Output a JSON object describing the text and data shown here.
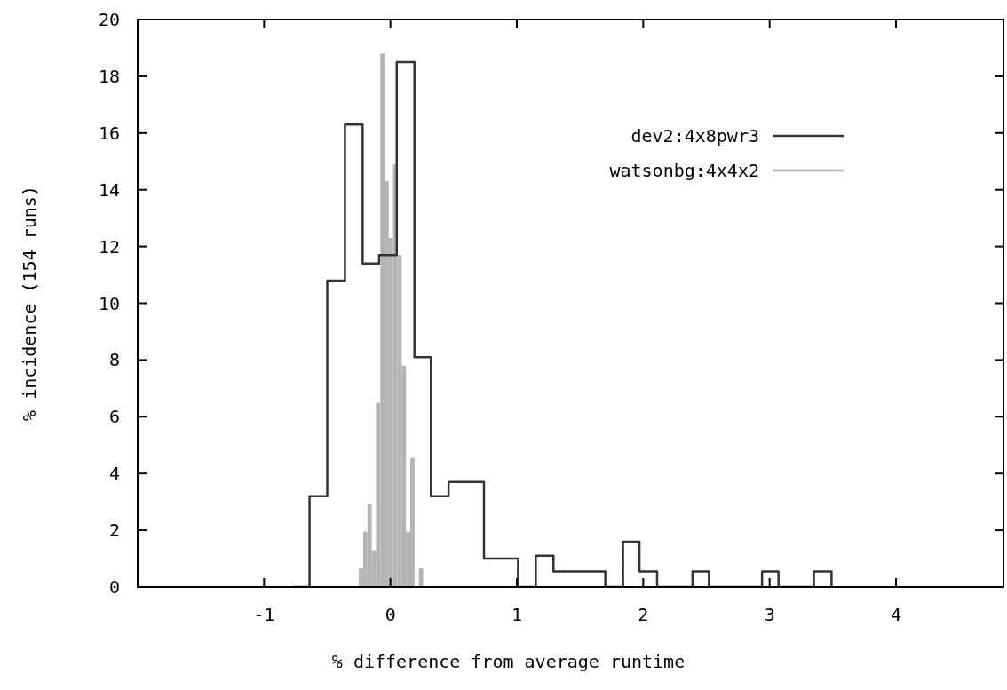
{
  "chart_data": {
    "type": "histogram",
    "xlabel": "% difference from average runtime",
    "ylabel": "% incidence (154 runs)",
    "xlim": [
      -2,
      4.85
    ],
    "xticks": [
      -1,
      0,
      1,
      2,
      3,
      4
    ],
    "ylim": [
      0,
      20
    ],
    "yticks": [
      0,
      2,
      4,
      6,
      8,
      10,
      12,
      14,
      16,
      18,
      20
    ],
    "grid": false,
    "legend": "top right",
    "series": [
      {
        "name": "dev2:4x8pwr3",
        "type": "step",
        "color": "#333333",
        "x": [
          -0.77,
          -0.64,
          -0.5,
          -0.36,
          -0.22,
          -0.09,
          0.05,
          0.19,
          0.32,
          0.46,
          0.6,
          0.74,
          0.87,
          1.01,
          1.15,
          1.29,
          1.42,
          1.56,
          1.7,
          1.84,
          1.97,
          2.11,
          2.25,
          2.39,
          2.52,
          2.66,
          2.8,
          2.94,
          3.07,
          3.21,
          3.35,
          3.49
        ],
        "values": [
          0,
          3.2,
          10.8,
          16.3,
          11.4,
          11.7,
          18.5,
          8.1,
          3.2,
          3.7,
          3.7,
          1.0,
          1.0,
          0,
          1.1,
          0.55,
          0.55,
          0.55,
          0,
          1.6,
          0.55,
          0,
          0,
          0.55,
          0,
          0,
          0,
          0.55,
          0,
          0,
          0.55,
          0
        ]
      },
      {
        "name": "watsonbg:4x4x2",
        "color": "#b4b4b4",
        "bins": [
          -0.25,
          -0.216,
          -0.182,
          -0.148,
          -0.114,
          -0.08,
          -0.047,
          -0.013,
          0.021,
          0.055,
          0.089,
          0.123,
          0.157,
          0.191,
          0.225,
          0.259
        ],
        "values": [
          0.65,
          1.95,
          2.92,
          1.3,
          6.49,
          18.8,
          14.3,
          12.3,
          14.9,
          11.7,
          7.8,
          1.95,
          4.55,
          0,
          0.65
        ]
      }
    ]
  }
}
